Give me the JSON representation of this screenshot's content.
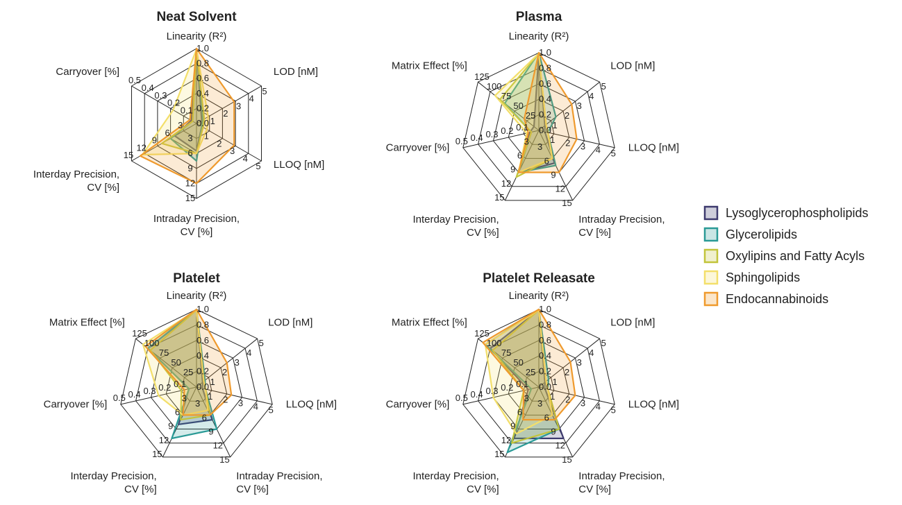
{
  "series": [
    {
      "name": "Lysoglycerophospholipids",
      "color": "#3d3a6e"
    },
    {
      "name": "Glycerolipids",
      "color": "#2a9a96"
    },
    {
      "name": "Oxylipins and Fatty Acyls",
      "color": "#c2c43a"
    },
    {
      "name": "Sphingolipids",
      "color": "#f3df6a"
    },
    {
      "name": "Endocannabinoids",
      "color": "#ef9a2d"
    }
  ],
  "chart_data": [
    {
      "type": "radar",
      "title": "Neat Solvent",
      "axes": [
        {
          "label": [
            "Linearity (R²)"
          ],
          "max": 1.0,
          "ticks": [
            "0.0",
            "0.2",
            "0.4",
            "0.6",
            "0.8",
            "1.0"
          ]
        },
        {
          "label": [
            "LOD [nM]"
          ],
          "max": 5,
          "ticks": [
            "1",
            "2",
            "3",
            "4",
            "5"
          ]
        },
        {
          "label": [
            "LLOQ [nM]"
          ],
          "max": 5,
          "ticks": [
            "1",
            "2",
            "3",
            "4",
            "5"
          ]
        },
        {
          "label": [
            "Intraday Precision,",
            "CV [%]"
          ],
          "max": 15,
          "ticks": [
            "3",
            "6",
            "9",
            "12",
            "15"
          ]
        },
        {
          "label": [
            "Interday Precision,",
            "CV [%]"
          ],
          "max": 15,
          "ticks": [
            "3",
            "6",
            "9",
            "12",
            "15"
          ]
        },
        {
          "label": [
            "Carryover [%]"
          ],
          "max": 0.5,
          "ticks": [
            "0.1",
            "0.2",
            "0.3",
            "0.4",
            "0.5"
          ]
        }
      ],
      "values": [
        [
          1.0,
          0.4,
          0.4,
          5.5,
          5,
          0.04
        ],
        [
          0.99,
          0.5,
          0.4,
          7.5,
          6,
          0.03
        ],
        [
          0.99,
          0.6,
          0.5,
          6,
          8,
          0.03
        ],
        [
          0.99,
          0.9,
          0.8,
          6,
          12.5,
          0.18
        ],
        [
          1.0,
          2.9,
          2.9,
          12,
          13,
          0.05
        ]
      ]
    },
    {
      "type": "radar",
      "title": "Plasma",
      "axes": [
        {
          "label": [
            "Linearity (R²)"
          ],
          "max": 1.0,
          "ticks": [
            "0.0",
            "0.2",
            "0.4",
            "0.6",
            "0.8",
            "1.0"
          ]
        },
        {
          "label": [
            "LOD [nM]"
          ],
          "max": 5,
          "ticks": [
            "1",
            "2",
            "3",
            "4",
            "5"
          ]
        },
        {
          "label": [
            "LLOQ [nM]"
          ],
          "max": 5,
          "ticks": [
            "1",
            "2",
            "3",
            "4",
            "5"
          ]
        },
        {
          "label": [
            "Intraday Precision,",
            "CV [%]"
          ],
          "max": 15,
          "ticks": [
            "3",
            "6",
            "9",
            "12",
            "15"
          ]
        },
        {
          "label": [
            "Interday Precision,",
            "CV [%]"
          ],
          "max": 15,
          "ticks": [
            "3",
            "6",
            "9",
            "12",
            "15"
          ]
        },
        {
          "label": [
            "Carryover [%]"
          ],
          "max": 0.5,
          "ticks": [
            "0.1",
            "0.2",
            "0.3",
            "0.4",
            "0.5"
          ]
        },
        {
          "label": [
            "Matrix Effect [%]"
          ],
          "max": 125,
          "ticks": [
            "25",
            "50",
            "75",
            "100",
            "125"
          ]
        }
      ],
      "values": [
        [
          0.99,
          0.5,
          0.4,
          7,
          9,
          0.06,
          10
        ],
        [
          1.0,
          1.4,
          0.6,
          7.5,
          9,
          0.05,
          70
        ],
        [
          0.99,
          0.6,
          0.6,
          6,
          10,
          0.05,
          80
        ],
        [
          0.99,
          0.6,
          0.6,
          6,
          9,
          0.08,
          90
        ],
        [
          1.0,
          2.7,
          2.5,
          9,
          9,
          0.07,
          30
        ]
      ]
    },
    {
      "type": "radar",
      "title": "Platelet",
      "axes": [
        {
          "label": [
            "Linearity (R²)"
          ],
          "max": 1.0,
          "ticks": [
            "0.0",
            "0.2",
            "0.4",
            "0.6",
            "0.8",
            "1.0"
          ]
        },
        {
          "label": [
            "LOD [nM]"
          ],
          "max": 5,
          "ticks": [
            "1",
            "2",
            "3",
            "4",
            "5"
          ]
        },
        {
          "label": [
            "LLOQ [nM]"
          ],
          "max": 5,
          "ticks": [
            "1",
            "2",
            "3",
            "4",
            "5"
          ]
        },
        {
          "label": [
            "Intraday Precision,",
            "CV [%]"
          ],
          "max": 15,
          "ticks": [
            "3",
            "6",
            "9",
            "12",
            "15"
          ]
        },
        {
          "label": [
            "Interday Precision,",
            "CV [%]"
          ],
          "max": 15,
          "ticks": [
            "3",
            "6",
            "9",
            "12",
            "15"
          ]
        },
        {
          "label": [
            "Carryover [%]"
          ],
          "max": 0.5,
          "ticks": [
            "0.1",
            "0.2",
            "0.3",
            "0.4",
            "0.5"
          ]
        },
        {
          "label": [
            "Matrix Effect [%]"
          ],
          "max": 125,
          "ticks": [
            "25",
            "50",
            "75",
            "100",
            "125"
          ]
        }
      ],
      "values": [
        [
          0.99,
          0.5,
          0.4,
          7,
          8,
          0.05,
          100
        ],
        [
          1.0,
          0.7,
          0.6,
          9,
          11,
          0.05,
          100
        ],
        [
          0.99,
          0.6,
          0.6,
          6,
          7,
          0.1,
          95
        ],
        [
          0.99,
          0.6,
          0.6,
          5,
          6,
          0.25,
          110
        ],
        [
          1.0,
          2.5,
          2.3,
          6,
          6,
          0.08,
          105
        ]
      ]
    },
    {
      "type": "radar",
      "title": "Platelet Releasate",
      "axes": [
        {
          "label": [
            "Linearity (R²)"
          ],
          "max": 1.0,
          "ticks": [
            "0.0",
            "0.2",
            "0.4",
            "0.6",
            "0.8",
            "1.0"
          ]
        },
        {
          "label": [
            "LOD [nM]"
          ],
          "max": 5,
          "ticks": [
            "1",
            "2",
            "3",
            "4",
            "5"
          ]
        },
        {
          "label": [
            "LLOQ [nM]"
          ],
          "max": 5,
          "ticks": [
            "1",
            "2",
            "3",
            "4",
            "5"
          ]
        },
        {
          "label": [
            "Intraday Precision,",
            "CV [%]"
          ],
          "max": 15,
          "ticks": [
            "3",
            "6",
            "9",
            "12",
            "15"
          ]
        },
        {
          "label": [
            "Interday Precision,",
            "CV [%]"
          ],
          "max": 15,
          "ticks": [
            "3",
            "6",
            "9",
            "12",
            "15"
          ]
        },
        {
          "label": [
            "Carryover [%]"
          ],
          "max": 0.5,
          "ticks": [
            "0.1",
            "0.2",
            "0.3",
            "0.4",
            "0.5"
          ]
        },
        {
          "label": [
            "Matrix Effect [%]"
          ],
          "max": 125,
          "ticks": [
            "25",
            "50",
            "75",
            "100",
            "125"
          ]
        }
      ],
      "values": [
        [
          0.99,
          0.5,
          0.4,
          11,
          11,
          0.07,
          100
        ],
        [
          1.0,
          0.8,
          0.6,
          9,
          14,
          0.05,
          110
        ],
        [
          0.99,
          0.6,
          0.6,
          9,
          12,
          0.1,
          95
        ],
        [
          0.99,
          0.6,
          0.6,
          6,
          10,
          0.3,
          110
        ],
        [
          1.0,
          2.6,
          2.4,
          7,
          7,
          0.1,
          115
        ]
      ]
    }
  ]
}
